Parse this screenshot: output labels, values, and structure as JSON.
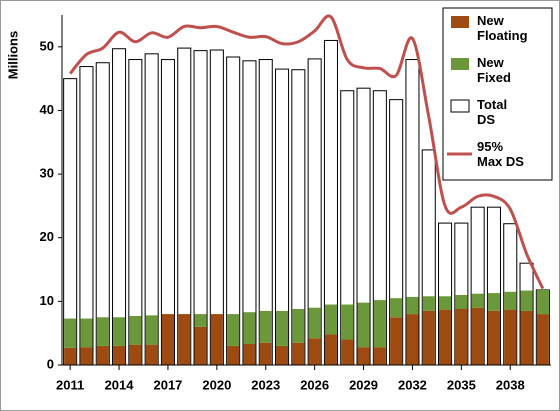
{
  "chart_data": {
    "type": "bar",
    "y_label": "Millions",
    "categories": [
      "2011",
      null,
      null,
      "2014",
      null,
      null,
      "2017",
      null,
      null,
      "2020",
      null,
      null,
      "2023",
      null,
      null,
      "2026",
      null,
      null,
      "2029",
      null,
      null,
      "2032",
      null,
      null,
      "2035",
      null,
      null,
      "2038",
      null,
      null
    ],
    "series": [
      {
        "name": "New Floating",
        "color": "#9e4b12",
        "values": [
          2.7,
          2.8,
          3,
          3,
          3.2,
          3.2,
          8,
          8,
          6,
          8,
          3,
          3.3,
          3.5,
          3,
          3.5,
          4.2,
          4.8,
          4,
          2.8,
          2.8,
          7.5,
          8,
          8.5,
          8.7,
          8.8,
          9,
          8.5,
          8.7,
          8.5,
          8
        ]
      },
      {
        "name": "New Fixed",
        "color": "#6b983a",
        "values": [
          4.6,
          4.5,
          4.5,
          4.5,
          4.5,
          4.6,
          0,
          0,
          2,
          0,
          5,
          5,
          5,
          5.5,
          5.3,
          4.8,
          4.7,
          5.5,
          7,
          7.4,
          3,
          2.7,
          2.3,
          2.1,
          2.2,
          2.2,
          2.8,
          2.8,
          3.2,
          3.8
        ]
      },
      {
        "name": "Total DS",
        "color": "#ffffff",
        "values": [
          45,
          46.9,
          47.5,
          49.7,
          48,
          48.9,
          48,
          49.8,
          49.4,
          49.5,
          48.4,
          47.8,
          48,
          46.5,
          46.4,
          48.1,
          51,
          43.1,
          43.5,
          43.1,
          41.7,
          48,
          33.8,
          22.3,
          22.3,
          24.8,
          24.8,
          22.2,
          16,
          11.8
        ]
      },
      {
        "name": "95% Max DS",
        "color": "#c0504d",
        "type": "line",
        "values": [
          45.8,
          48.8,
          49.8,
          52.3,
          50.8,
          52.2,
          51.5,
          53.2,
          53,
          53.2,
          52.3,
          51.5,
          51.6,
          50.5,
          50.8,
          52.5,
          54.7,
          48,
          46.7,
          46.6,
          45.5,
          51.3,
          39,
          25,
          24.8,
          26.5,
          26.5,
          24.5,
          17.5,
          12
        ]
      }
    ],
    "ylim": [
      0,
      55
    ],
    "yticks": [
      0,
      10,
      20,
      30,
      40,
      50
    ]
  }
}
